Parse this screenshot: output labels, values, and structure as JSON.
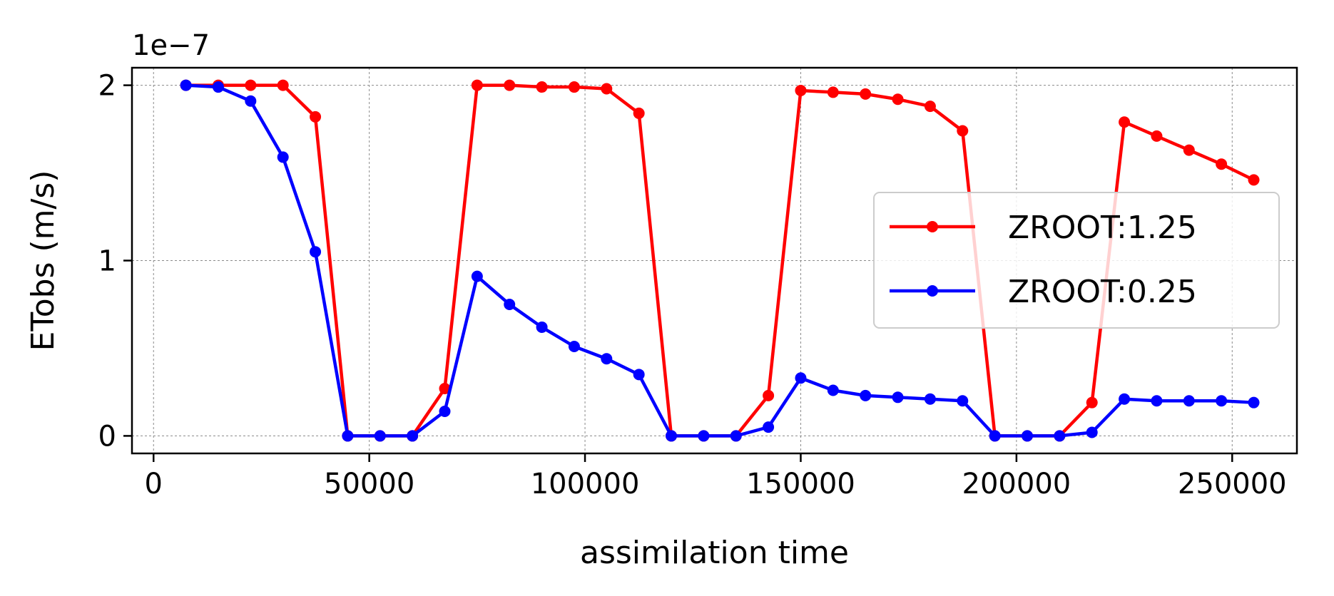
{
  "chart_data": {
    "type": "line",
    "xlabel": "assimilation time",
    "ylabel": "ETobs (m/s)",
    "y_offset_label": "1e−7",
    "y_scale": 1e-07,
    "xlim": [
      -5000,
      265000
    ],
    "ylim": [
      -0.1,
      2.1
    ],
    "xticks": [
      0,
      50000,
      100000,
      150000,
      200000,
      250000
    ],
    "xtick_labels": [
      "0",
      "50000",
      "100000",
      "150000",
      "200000",
      "250000"
    ],
    "yticks": [
      0,
      1,
      2
    ],
    "ytick_labels": [
      "0",
      "1",
      "2"
    ],
    "grid": true,
    "legend_position": "center-right",
    "x": [
      7500,
      15000,
      22500,
      30000,
      37500,
      45000,
      52500,
      60000,
      67500,
      75000,
      82500,
      90000,
      97500,
      105000,
      112500,
      120000,
      127500,
      135000,
      142500,
      150000,
      157500,
      165000,
      172500,
      180000,
      187500,
      195000,
      202500,
      210000,
      217500,
      225000,
      232500,
      240000,
      247500,
      255000
    ],
    "series": [
      {
        "name": "ZROOT:1.25",
        "color": "#ff0000",
        "values": [
          2.0,
          2.0,
          2.0,
          2.0,
          1.82,
          0.0,
          0.0,
          0.0,
          0.27,
          2.0,
          2.0,
          1.99,
          1.99,
          1.98,
          1.84,
          0.0,
          0.0,
          0.0,
          0.23,
          1.97,
          1.96,
          1.95,
          1.92,
          1.88,
          1.74,
          0.0,
          0.0,
          0.0,
          0.19,
          1.79,
          1.71,
          1.63,
          1.55,
          1.46
        ]
      },
      {
        "name": "ZROOT:0.25",
        "color": "#0000ff",
        "values": [
          2.0,
          1.99,
          1.91,
          1.59,
          1.05,
          0.0,
          0.0,
          0.0,
          0.14,
          0.91,
          0.75,
          0.62,
          0.51,
          0.44,
          0.35,
          0.0,
          0.0,
          0.0,
          0.05,
          0.33,
          0.26,
          0.23,
          0.22,
          0.21,
          0.2,
          0.0,
          0.0,
          0.0,
          0.02,
          0.21,
          0.2,
          0.2,
          0.2,
          0.19
        ]
      }
    ]
  }
}
